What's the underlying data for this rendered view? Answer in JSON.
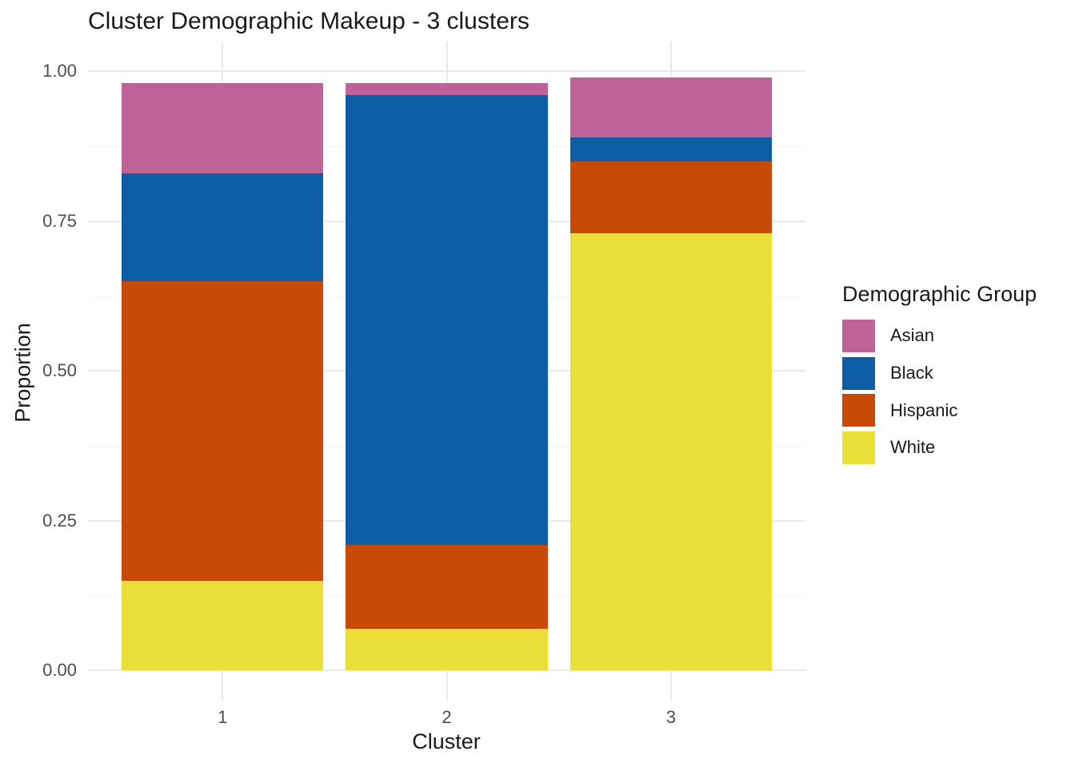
{
  "chart_data": {
    "type": "bar",
    "subtype": "stacked-proportion",
    "title": "Cluster Demographic Makeup - 3 clusters",
    "xlabel": "Cluster",
    "ylabel": "Proportion",
    "legend_title": "Demographic Group",
    "legend_position": "right",
    "grid": "on",
    "categories": [
      "1",
      "2",
      "3"
    ],
    "series": [
      {
        "name": "Asian",
        "color": "#be6298",
        "values": [
          0.15,
          0.02,
          0.1
        ]
      },
      {
        "name": "Black",
        "color": "#0e5ea6",
        "values": [
          0.18,
          0.75,
          0.04
        ]
      },
      {
        "name": "Hispanic",
        "color": "#c94a06",
        "values": [
          0.5,
          0.14,
          0.12
        ]
      },
      {
        "name": "White",
        "color": "#ebe039",
        "values": [
          0.15,
          0.07,
          0.73
        ]
      }
    ],
    "stack_totals": [
      0.98,
      0.98,
      0.99
    ],
    "stack_order_bottom_to_top": [
      "White",
      "Hispanic",
      "Black",
      "Asian"
    ],
    "ylim": [
      0,
      1.05
    ],
    "y_tick_labels": [
      "0.00",
      "0.25",
      "0.50",
      "0.75",
      "1.00"
    ],
    "y_tick_values": [
      0,
      0.25,
      0.5,
      0.75,
      1.0
    ],
    "y_minor_values": [
      0.125,
      0.375,
      0.625,
      0.875
    ]
  }
}
